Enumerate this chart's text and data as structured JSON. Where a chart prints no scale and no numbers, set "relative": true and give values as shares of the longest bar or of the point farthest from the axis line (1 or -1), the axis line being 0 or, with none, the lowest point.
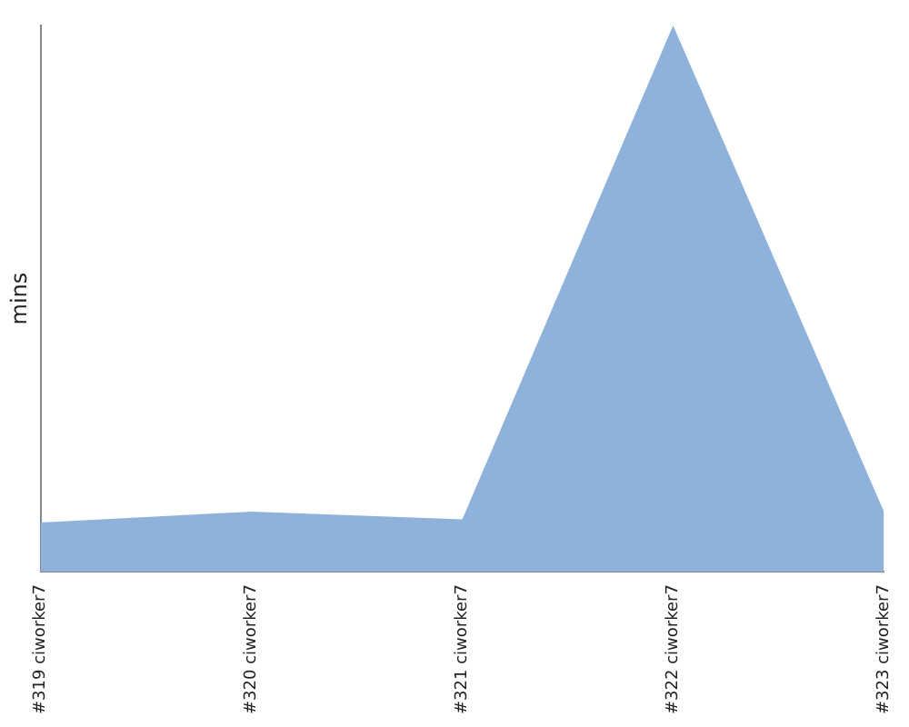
{
  "chart_data": {
    "type": "area",
    "ylabel": "mins",
    "relative": true,
    "categories": [
      "#319 ciworker7",
      "#320 ciworker7",
      "#321 ciworker7",
      "#322 ciworker7",
      "#323 ciworker7"
    ],
    "series": [
      {
        "color": "#8fb2db",
        "values": [
          0.09,
          0.11,
          0.096,
          1,
          0.11
        ]
      }
    ],
    "grid": false,
    "legend": false
  }
}
